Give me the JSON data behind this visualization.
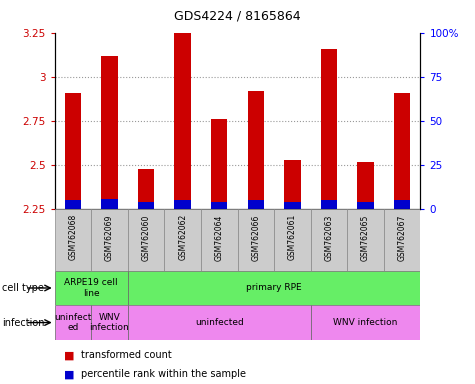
{
  "title": "GDS4224 / 8165864",
  "samples": [
    "GSM762068",
    "GSM762069",
    "GSM762060",
    "GSM762062",
    "GSM762064",
    "GSM762066",
    "GSM762061",
    "GSM762063",
    "GSM762065",
    "GSM762067"
  ],
  "transformed_counts": [
    2.91,
    3.12,
    2.48,
    3.27,
    2.76,
    2.92,
    2.53,
    3.16,
    2.52,
    2.91
  ],
  "percentile_ranks": [
    5,
    6,
    4,
    5,
    4,
    5,
    4,
    5,
    4,
    5
  ],
  "ylim_left": [
    2.25,
    3.25
  ],
  "ylim_right": [
    0,
    100
  ],
  "yticks_left": [
    2.25,
    2.5,
    2.75,
    3.0,
    3.25
  ],
  "yticks_right": [
    0,
    25,
    50,
    75,
    100
  ],
  "ytick_labels_left": [
    "2.25",
    "2.5",
    "2.75",
    "3",
    "3.25"
  ],
  "ytick_labels_right": [
    "0",
    "25",
    "50",
    "75",
    "100%"
  ],
  "bar_color_red": "#cc0000",
  "bar_color_blue": "#0000cc",
  "bar_baseline": 2.25,
  "cell_type_labels": [
    {
      "label": "ARPE19 cell\nline",
      "start": 0,
      "end": 2
    },
    {
      "label": "primary RPE",
      "start": 2,
      "end": 10
    }
  ],
  "cell_type_color": "#66ee66",
  "infection_labels": [
    {
      "label": "uninfect\ned",
      "start": 0,
      "end": 1
    },
    {
      "label": "WNV\ninfection",
      "start": 1,
      "end": 2
    },
    {
      "label": "uninfected",
      "start": 2,
      "end": 7
    },
    {
      "label": "WNV infection",
      "start": 7,
      "end": 10
    }
  ],
  "infection_color": "#ee88ee",
  "legend_items": [
    {
      "label": "transformed count",
      "color": "#cc0000"
    },
    {
      "label": "percentile rank within the sample",
      "color": "#0000cc"
    }
  ],
  "cell_type_row_label": "cell type",
  "infection_row_label": "infection",
  "grid_color": "#999999",
  "tick_color_left": "#cc0000",
  "tick_color_right": "#0000ff",
  "sample_box_color": "#cccccc",
  "bar_width": 0.45
}
